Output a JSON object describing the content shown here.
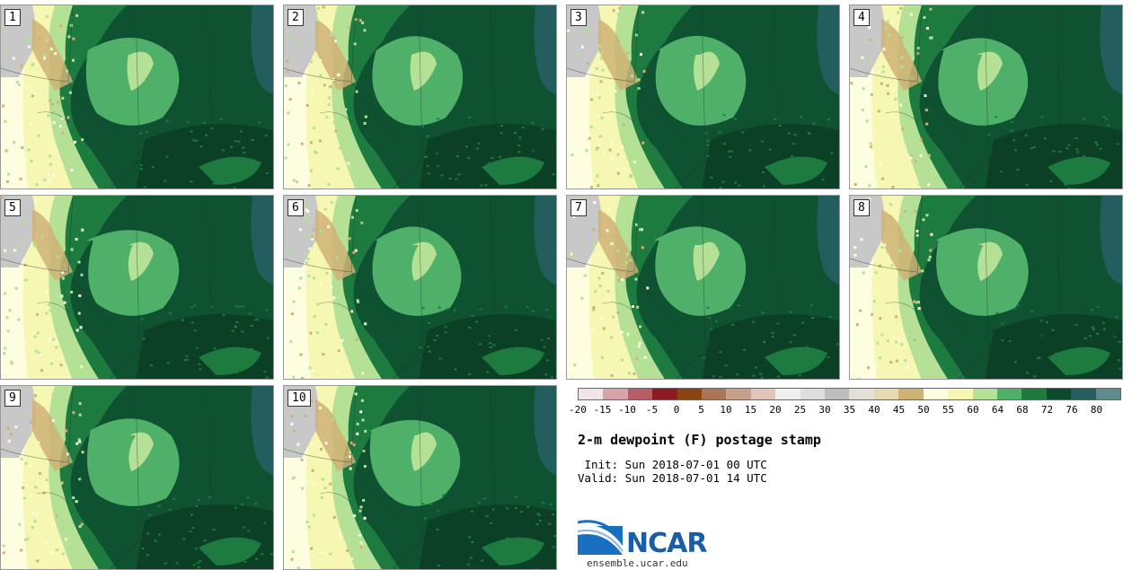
{
  "panels": [
    {
      "label": "1"
    },
    {
      "label": "2"
    },
    {
      "label": "3"
    },
    {
      "label": "4"
    },
    {
      "label": "5"
    },
    {
      "label": "6"
    },
    {
      "label": "7"
    },
    {
      "label": "8"
    },
    {
      "label": "9"
    },
    {
      "label": "10"
    }
  ],
  "colorbar": {
    "colors": [
      "#f3e4e6",
      "#d6a3a8",
      "#b55e66",
      "#8b1a22",
      "#8a4513",
      "#a9765a",
      "#c79f8c",
      "#dfc6b9",
      "#f0f0f0",
      "#dedede",
      "#bdbdbd",
      "#e3e1d6",
      "#e6d8b0",
      "#cfb276",
      "#fdfde0",
      "#f6f7b2",
      "#b4e196",
      "#4fb06a",
      "#1d7b40",
      "#0b4a2c",
      "#245d5e",
      "#5f8a8e"
    ],
    "ticks": [
      "-20",
      "-15",
      "-10",
      "-5",
      "0",
      "5",
      "10",
      "15",
      "20",
      "25",
      "30",
      "35",
      "40",
      "45",
      "50",
      "55",
      "60",
      "64",
      "68",
      "72",
      "76",
      "80"
    ]
  },
  "title": "2-m dewpoint (F) postage stamp",
  "init_line": " Init: Sun 2018-07-01 00 UTC",
  "valid_line": "Valid: Sun 2018-07-01 14 UTC",
  "logo": {
    "text": "NCAR",
    "url": "ensemble.ucar.edu"
  },
  "map_colors": {
    "dark": "#0f5232",
    "darkest": "#0b3f26",
    "mid": "#1d7b40",
    "light": "#4fb06a",
    "pale": "#b4e196",
    "yellow": "#f6f7b2",
    "cream": "#fdfde0",
    "tan": "#cfb276",
    "gray": "#c8c8c8",
    "teal": "#245d5e"
  }
}
